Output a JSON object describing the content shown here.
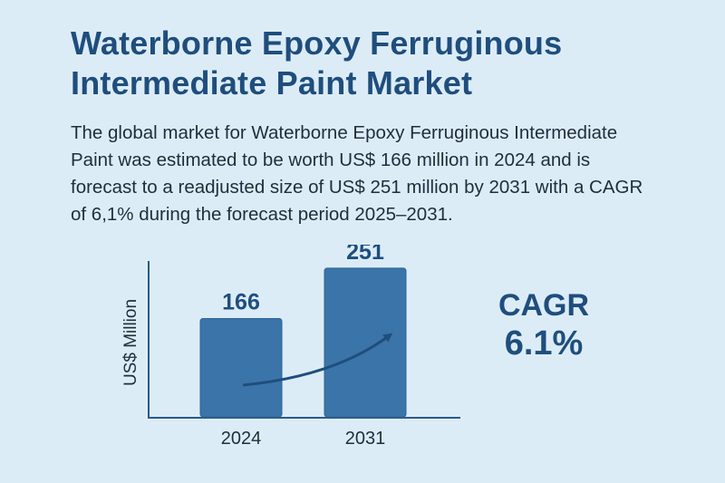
{
  "header": {
    "title": "Waterborne Epoxy Ferruginous Intermediate Paint Market",
    "description": "The global market for Waterborne Epoxy Ferruginous Intermediate Paint was estimated to be worth US$ 166 million in 2024 and is forecast to a readjusted size of US$ 251 million by 2031 with a CAGR of 6,1% during the forecast period 2025–2031."
  },
  "cagr": {
    "label": "CAGR",
    "value": "6.1%"
  },
  "colors": {
    "bar": "#3b74a8",
    "bar_border": "#2f6596",
    "axis": "#2b5a8a",
    "arrow": "#1f4e7d",
    "text_dark": "#1f4e7d"
  },
  "chart_data": {
    "type": "bar",
    "categories": [
      "2024",
      "2031"
    ],
    "values": [
      166,
      251
    ],
    "data_labels": [
      "166",
      "251"
    ],
    "title": "",
    "xlabel": "",
    "ylabel": "US$ Million",
    "ylim": [
      0,
      260
    ],
    "grid": false,
    "legend": "none",
    "annotation": "upward growth arrow from 2024 bar to 2031 bar"
  }
}
